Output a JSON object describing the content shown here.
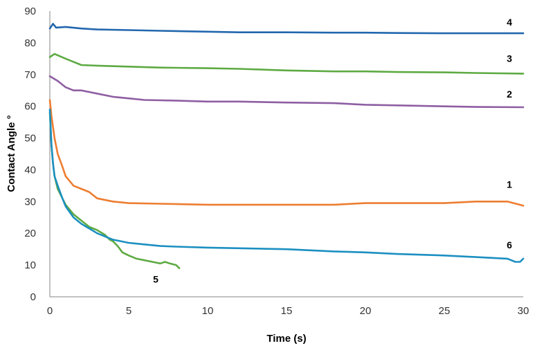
{
  "chart_data": {
    "type": "line",
    "title": "",
    "xlabel": "Time (s)",
    "ylabel": "Contact Angle °",
    "xlim": [
      0,
      30
    ],
    "ylim": [
      0,
      90
    ],
    "x_ticks": [
      "0",
      "5",
      "10",
      "15",
      "20",
      "25",
      "30"
    ],
    "y_ticks": [
      "0",
      "10",
      "20",
      "30",
      "40",
      "50",
      "60",
      "70",
      "80",
      "90"
    ],
    "grid": false,
    "legend": "none",
    "series": [
      {
        "label": "1",
        "color": "#ED7D31",
        "points": [
          [
            0,
            62
          ],
          [
            0.1,
            57
          ],
          [
            0.3,
            50
          ],
          [
            0.5,
            45
          ],
          [
            0.8,
            41
          ],
          [
            1,
            38
          ],
          [
            1.5,
            35
          ],
          [
            2,
            34
          ],
          [
            2.5,
            33
          ],
          [
            3,
            31
          ],
          [
            4,
            30
          ],
          [
            5,
            29.5
          ],
          [
            7,
            29.3
          ],
          [
            10,
            29
          ],
          [
            12,
            29
          ],
          [
            15,
            29
          ],
          [
            18,
            29
          ],
          [
            20,
            29.5
          ],
          [
            22,
            29.5
          ],
          [
            25,
            29.5
          ],
          [
            27,
            30
          ],
          [
            28,
            30
          ],
          [
            29,
            30
          ],
          [
            30,
            28.7
          ]
        ]
      },
      {
        "label": "2",
        "color": "#8E5EA2",
        "points": [
          [
            0,
            69.5
          ],
          [
            0.5,
            68
          ],
          [
            1,
            66
          ],
          [
            1.5,
            65
          ],
          [
            2,
            65
          ],
          [
            3,
            64
          ],
          [
            4,
            63
          ],
          [
            5,
            62.5
          ],
          [
            6,
            62
          ],
          [
            8,
            61.8
          ],
          [
            10,
            61.5
          ],
          [
            12,
            61.5
          ],
          [
            15,
            61.2
          ],
          [
            18,
            61
          ],
          [
            20,
            60.5
          ],
          [
            22,
            60.3
          ],
          [
            25,
            60
          ],
          [
            27,
            59.8
          ],
          [
            30,
            59.7
          ]
        ]
      },
      {
        "label": "3",
        "color": "#5DAA42",
        "points": [
          [
            0,
            75.5
          ],
          [
            0.3,
            76.5
          ],
          [
            1,
            75
          ],
          [
            1.5,
            74
          ],
          [
            2,
            73
          ],
          [
            3,
            72.8
          ],
          [
            5,
            72.5
          ],
          [
            7,
            72.2
          ],
          [
            10,
            72
          ],
          [
            12,
            71.8
          ],
          [
            15,
            71.3
          ],
          [
            18,
            71
          ],
          [
            20,
            71
          ],
          [
            22,
            70.8
          ],
          [
            25,
            70.7
          ],
          [
            27,
            70.5
          ],
          [
            30,
            70.3
          ]
        ]
      },
      {
        "label": "4",
        "color": "#2167AE",
        "points": [
          [
            0,
            84.5
          ],
          [
            0.2,
            86
          ],
          [
            0.4,
            84.8
          ],
          [
            1,
            85
          ],
          [
            2,
            84.5
          ],
          [
            3,
            84.2
          ],
          [
            5,
            84
          ],
          [
            7,
            83.8
          ],
          [
            10,
            83.5
          ],
          [
            12,
            83.3
          ],
          [
            15,
            83.3
          ],
          [
            18,
            83.2
          ],
          [
            20,
            83.2
          ],
          [
            22,
            83.1
          ],
          [
            25,
            83
          ],
          [
            27,
            83
          ],
          [
            30,
            83
          ]
        ]
      },
      {
        "label": "5",
        "color": "#5DAA42",
        "points": [
          [
            0,
            58
          ],
          [
            0.1,
            48
          ],
          [
            0.2,
            42
          ],
          [
            0.3,
            38
          ],
          [
            0.5,
            34
          ],
          [
            0.8,
            31
          ],
          [
            1,
            29
          ],
          [
            1.5,
            26
          ],
          [
            2,
            24
          ],
          [
            2.5,
            22
          ],
          [
            3,
            21
          ],
          [
            3.5,
            19.5
          ],
          [
            3.8,
            18
          ],
          [
            4,
            17.5
          ],
          [
            4.3,
            16
          ],
          [
            4.6,
            14
          ],
          [
            5,
            13
          ],
          [
            5.5,
            12
          ],
          [
            6,
            11.5
          ],
          [
            6.5,
            11
          ],
          [
            7,
            10.5
          ],
          [
            7.3,
            11
          ],
          [
            7.6,
            10.5
          ],
          [
            8,
            10
          ],
          [
            8.2,
            9
          ]
        ]
      },
      {
        "label": "6",
        "color": "#1B8FC1",
        "points": [
          [
            0,
            59
          ],
          [
            0.1,
            48
          ],
          [
            0.2,
            42
          ],
          [
            0.3,
            38
          ],
          [
            0.5,
            35
          ],
          [
            0.8,
            31
          ],
          [
            1,
            28.5
          ],
          [
            1.5,
            25
          ],
          [
            2,
            23
          ],
          [
            2.5,
            21.5
          ],
          [
            3,
            20
          ],
          [
            4,
            18
          ],
          [
            5,
            17
          ],
          [
            6,
            16.5
          ],
          [
            7,
            16
          ],
          [
            8,
            15.8
          ],
          [
            10,
            15.5
          ],
          [
            12,
            15.3
          ],
          [
            15,
            15
          ],
          [
            18,
            14.3
          ],
          [
            20,
            14
          ],
          [
            22,
            13.5
          ],
          [
            25,
            13
          ],
          [
            27,
            12.5
          ],
          [
            29,
            12
          ],
          [
            29.5,
            11
          ],
          [
            29.8,
            11
          ],
          [
            30,
            12
          ]
        ]
      }
    ]
  }
}
